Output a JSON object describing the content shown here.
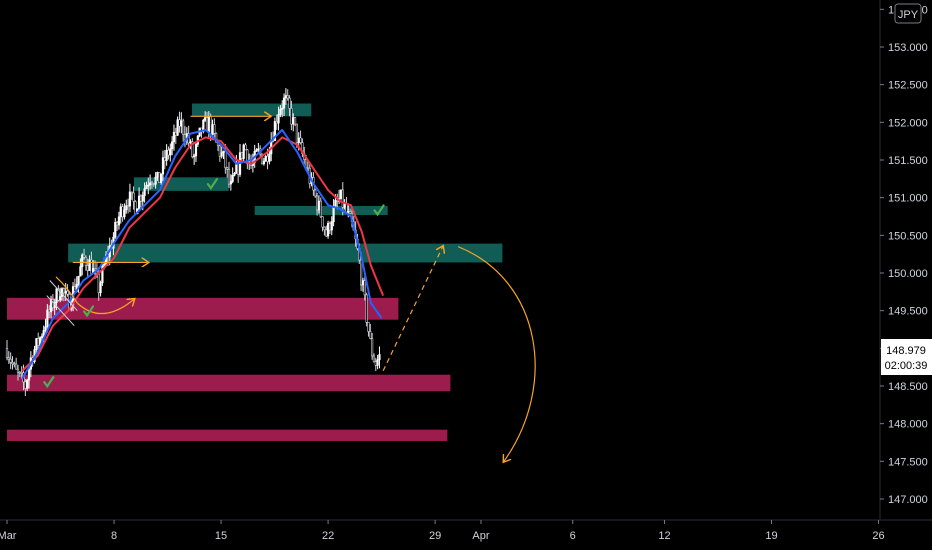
{
  "chart_data": {
    "type": "candlestick",
    "currency_badge": "JPY",
    "y_ticks": [
      "153.500",
      "153.000",
      "152.500",
      "152.000",
      "151.500",
      "151.000",
      "150.500",
      "150.000",
      "149.500",
      "149.000",
      "148.500",
      "148.000",
      "147.500",
      "147.000"
    ],
    "x_ticks": [
      "Mar",
      "8",
      "15",
      "22",
      "29",
      "Apr",
      "6",
      "12",
      "19",
      "26"
    ],
    "x_tick_days": [
      1,
      8,
      15,
      22,
      29,
      32,
      38,
      44,
      51,
      58
    ],
    "ylim": [
      146.71,
      153.74
    ],
    "xlim": [
      1,
      62
    ],
    "current_price": "148.979",
    "countdown": "02:00:39",
    "price_path": [
      [
        1.0,
        149.0
      ],
      [
        1.5,
        148.7
      ],
      [
        2.2,
        148.5
      ],
      [
        2.6,
        148.9
      ],
      [
        3.1,
        149.1
      ],
      [
        3.6,
        149.4
      ],
      [
        4.0,
        149.6
      ],
      [
        4.5,
        149.8
      ],
      [
        5.0,
        149.6
      ],
      [
        5.6,
        149.9
      ],
      [
        6.0,
        150.2
      ],
      [
        6.5,
        150.1
      ],
      [
        7.0,
        149.8
      ],
      [
        7.5,
        150.2
      ],
      [
        8.0,
        150.5
      ],
      [
        8.4,
        150.8
      ],
      [
        8.9,
        151.0
      ],
      [
        9.4,
        150.9
      ],
      [
        9.9,
        151.1
      ],
      [
        10.4,
        151.3
      ],
      [
        10.9,
        151.2
      ],
      [
        11.3,
        151.5
      ],
      [
        11.8,
        151.7
      ],
      [
        12.3,
        152.0
      ],
      [
        12.8,
        151.8
      ],
      [
        13.2,
        151.5
      ],
      [
        13.7,
        151.9
      ],
      [
        14.2,
        152.0
      ],
      [
        14.7,
        151.7
      ],
      [
        15.2,
        151.5
      ],
      [
        15.6,
        151.1
      ],
      [
        16.1,
        151.4
      ],
      [
        16.5,
        151.7
      ],
      [
        17.0,
        151.4
      ],
      [
        17.4,
        151.6
      ],
      [
        17.9,
        151.5
      ],
      [
        18.3,
        151.8
      ],
      [
        18.8,
        152.2
      ],
      [
        19.2,
        152.3
      ],
      [
        19.7,
        152.0
      ],
      [
        20.1,
        151.7
      ],
      [
        20.6,
        151.4
      ],
      [
        21.0,
        151.1
      ],
      [
        21.5,
        150.8
      ],
      [
        21.9,
        150.5
      ],
      [
        22.3,
        150.8
      ],
      [
        22.8,
        151.0
      ],
      [
        23.2,
        150.8
      ],
      [
        23.6,
        150.6
      ],
      [
        24.0,
        150.2
      ],
      [
        24.4,
        149.6
      ],
      [
        24.8,
        149.0
      ],
      [
        25.1,
        148.8
      ],
      [
        25.4,
        148.9
      ]
    ],
    "series": [
      {
        "color": "#f23645",
        "values": [
          [
            2.0,
            148.7
          ],
          [
            3.0,
            148.9
          ],
          [
            4.0,
            149.3
          ],
          [
            5.0,
            149.5
          ],
          [
            6.0,
            149.8
          ],
          [
            7.0,
            150.0
          ],
          [
            8.0,
            150.2
          ],
          [
            9.0,
            150.6
          ],
          [
            10.0,
            150.8
          ],
          [
            11.0,
            151.0
          ],
          [
            12.0,
            151.4
          ],
          [
            13.0,
            151.7
          ],
          [
            14.0,
            151.8
          ],
          [
            15.0,
            151.75
          ],
          [
            16.0,
            151.5
          ],
          [
            17.0,
            151.45
          ],
          [
            18.0,
            151.6
          ],
          [
            19.0,
            151.8
          ],
          [
            20.0,
            151.7
          ],
          [
            21.0,
            151.4
          ],
          [
            22.0,
            151.1
          ],
          [
            22.8,
            150.95
          ],
          [
            23.5,
            150.9
          ],
          [
            24.2,
            150.55
          ],
          [
            24.8,
            150.1
          ],
          [
            25.6,
            149.7
          ]
        ]
      },
      {
        "color": "#2962ff",
        "values": [
          [
            2.0,
            148.6
          ],
          [
            3.0,
            148.95
          ],
          [
            4.0,
            149.4
          ],
          [
            5.0,
            149.6
          ],
          [
            6.0,
            149.9
          ],
          [
            7.0,
            150.05
          ],
          [
            8.0,
            150.4
          ],
          [
            9.0,
            150.7
          ],
          [
            10.0,
            150.9
          ],
          [
            11.0,
            151.1
          ],
          [
            12.0,
            151.55
          ],
          [
            13.0,
            151.85
          ],
          [
            14.0,
            151.9
          ],
          [
            15.0,
            151.7
          ],
          [
            16.0,
            151.45
          ],
          [
            17.0,
            151.5
          ],
          [
            18.0,
            151.7
          ],
          [
            19.0,
            151.9
          ],
          [
            20.0,
            151.6
          ],
          [
            21.0,
            151.2
          ],
          [
            22.0,
            150.9
          ],
          [
            22.8,
            150.85
          ],
          [
            23.5,
            150.75
          ],
          [
            24.2,
            150.2
          ],
          [
            24.8,
            149.6
          ],
          [
            25.5,
            149.4
          ]
        ]
      }
    ],
    "zones": [
      {
        "color": "#0f5d55",
        "x1": 13.1,
        "x2": 20.9,
        "y1": 152.25,
        "y2": 152.08
      },
      {
        "color": "#0f5d55",
        "x1": 9.3,
        "x2": 15.5,
        "y1": 151.27,
        "y2": 151.09
      },
      {
        "color": "#0f5d55",
        "x1": 17.2,
        "x2": 25.9,
        "y1": 150.89,
        "y2": 150.77
      },
      {
        "color": "#0f5d55",
        "x1": 5.0,
        "x2": 33.4,
        "y1": 150.39,
        "y2": 150.14
      },
      {
        "color": "#9b1c4d",
        "x1": 1.0,
        "x2": 26.6,
        "y1": 149.67,
        "y2": 149.38
      },
      {
        "color": "#9b1c4d",
        "x1": 1.0,
        "x2": 30.0,
        "y1": 148.65,
        "y2": 148.43
      },
      {
        "color": "#9b1c4d",
        "x1": 1.0,
        "x2": 29.8,
        "y1": 147.92,
        "y2": 147.77
      }
    ],
    "checkmarks": [
      [
        14.4,
        151.18
      ],
      [
        25.3,
        150.83
      ],
      [
        6.3,
        149.49
      ],
      [
        3.7,
        148.55
      ]
    ],
    "annotation_color": "#f7a325"
  }
}
